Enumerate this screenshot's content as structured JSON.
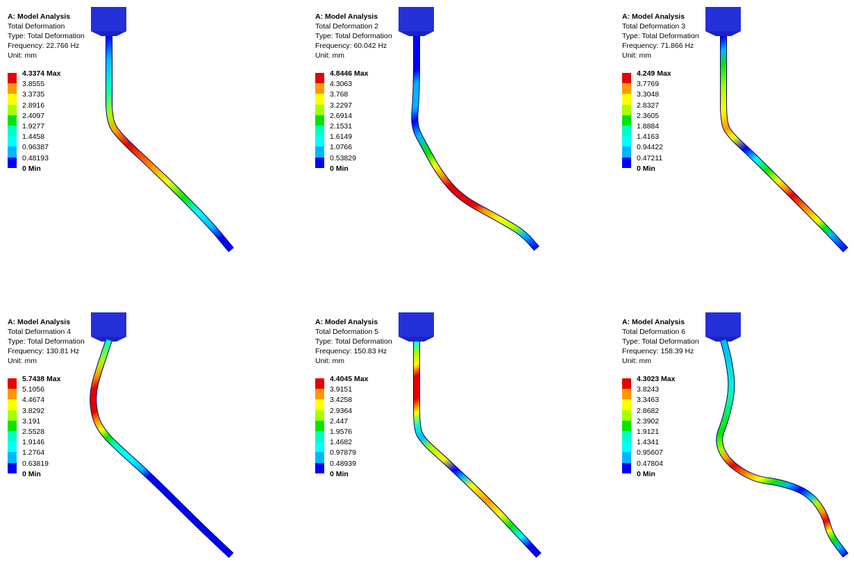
{
  "panels": [
    {
      "title": "A: Model Analysis",
      "result": "Total Deformation",
      "type": "Type: Total Deformation",
      "frequency": "Frequency: 22.766 Hz",
      "unit": "Unit: mm",
      "max_label": "4.3374 Max",
      "levels": [
        "3.8555",
        "3.3735",
        "2.8916",
        "2.4097",
        "1.9277",
        "1.4458",
        "0.96387",
        "0.48193"
      ],
      "min_label": "0 Min"
    },
    {
      "title": "A: Model Analysis",
      "result": "Total Deformation 2",
      "type": "Type: Total Deformation",
      "frequency": "Frequency: 60.042 Hz",
      "unit": "Unit: mm",
      "max_label": "4.8446 Max",
      "levels": [
        "4.3063",
        "3.768",
        "3.2297",
        "2.6914",
        "2.1531",
        "1.6149",
        "1.0766",
        "0.53829"
      ],
      "min_label": "0 Min"
    },
    {
      "title": "A: Model Analysis",
      "result": "Total Deformation 3",
      "type": "Type: Total Deformation",
      "frequency": "Frequency: 71.866 Hz",
      "unit": "Unit: mm",
      "max_label": "4.249 Max",
      "levels": [
        "3.7769",
        "3.3048",
        "2.8327",
        "2.3605",
        "1.8884",
        "1.4163",
        "0.94422",
        "0.47211"
      ],
      "min_label": "0 Min"
    },
    {
      "title": "A: Model Analysis",
      "result": "Total Deformation 4",
      "type": "Type: Total Deformation",
      "frequency": "Frequency: 130.81 Hz",
      "unit": "Unit: mm",
      "max_label": "5.7438 Max",
      "levels": [
        "5.1056",
        "4.4674",
        "3.8292",
        "3.191",
        "2.5528",
        "1.9146",
        "1.2764",
        "0.63819"
      ],
      "min_label": "0 Min"
    },
    {
      "title": "A: Model Analysis",
      "result": "Total Deformation 5",
      "type": "Type: Total Deformation",
      "frequency": "Frequency: 150.83 Hz",
      "unit": "Unit: mm",
      "max_label": "4.4045 Max",
      "levels": [
        "3.9151",
        "3.4258",
        "2.9364",
        "2.447",
        "1.9576",
        "1.4682",
        "0.97879",
        "0.48939"
      ],
      "min_label": "0 Min"
    },
    {
      "title": "A: Model Analysis",
      "result": "Total Deformation 6",
      "type": "Type: Total Deformation",
      "frequency": "Frequency: 158.39 Hz",
      "unit": "Unit: mm",
      "max_label": "4.3023 Max",
      "levels": [
        "3.8243",
        "3.3463",
        "2.8682",
        "2.3902",
        "1.9121",
        "1.4341",
        "0.95607",
        "0.47804"
      ],
      "min_label": "0 Min"
    }
  ],
  "legend_colors": [
    "#e60000",
    "#ff9900",
    "#ffff00",
    "#a6ff00",
    "#00e600",
    "#00ffc4",
    "#00ffff",
    "#00b7ff",
    "#0000ff"
  ],
  "mount_color": "#1a22c8"
}
